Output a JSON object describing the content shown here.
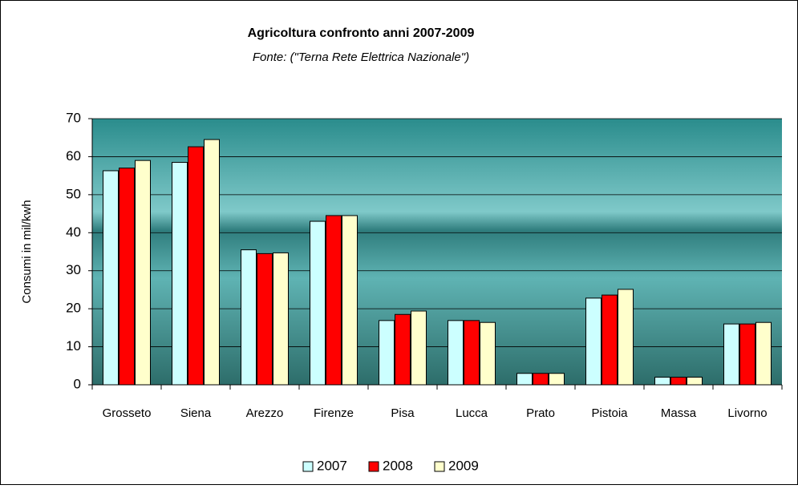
{
  "chart_data": {
    "type": "bar",
    "title": "Agricoltura confronto anni 2007-2009",
    "subtitle": "Fonte: (\"Terna Rete Elettrica Nazionale\")",
    "y_label": "Consumi in mil/kwh",
    "categories": [
      "Grosseto",
      "Siena",
      "Arezzo",
      "Firenze",
      "Pisa",
      "Lucca",
      "Prato",
      "Pistoia",
      "Massa",
      "Livorno"
    ],
    "series": [
      {
        "name": "2007",
        "color": "#ccffff",
        "values": [
          56.3,
          58.5,
          35.5,
          43,
          16.9,
          16.9,
          3,
          22.8,
          2,
          16
        ]
      },
      {
        "name": "2008",
        "color": "#ff0000",
        "values": [
          57,
          62.6,
          34.5,
          44.5,
          18.5,
          16.9,
          3,
          23.6,
          2,
          16
        ]
      },
      {
        "name": "2009",
        "color": "#ffffcc",
        "values": [
          59,
          64.5,
          34.7,
          44.5,
          19.4,
          16.4,
          3,
          25.1,
          2,
          16.4
        ]
      }
    ],
    "ylim": [
      0,
      70
    ],
    "yticks": [
      0,
      10,
      20,
      30,
      40,
      50,
      60,
      70
    ],
    "grid": true,
    "legend": "bottom"
  }
}
